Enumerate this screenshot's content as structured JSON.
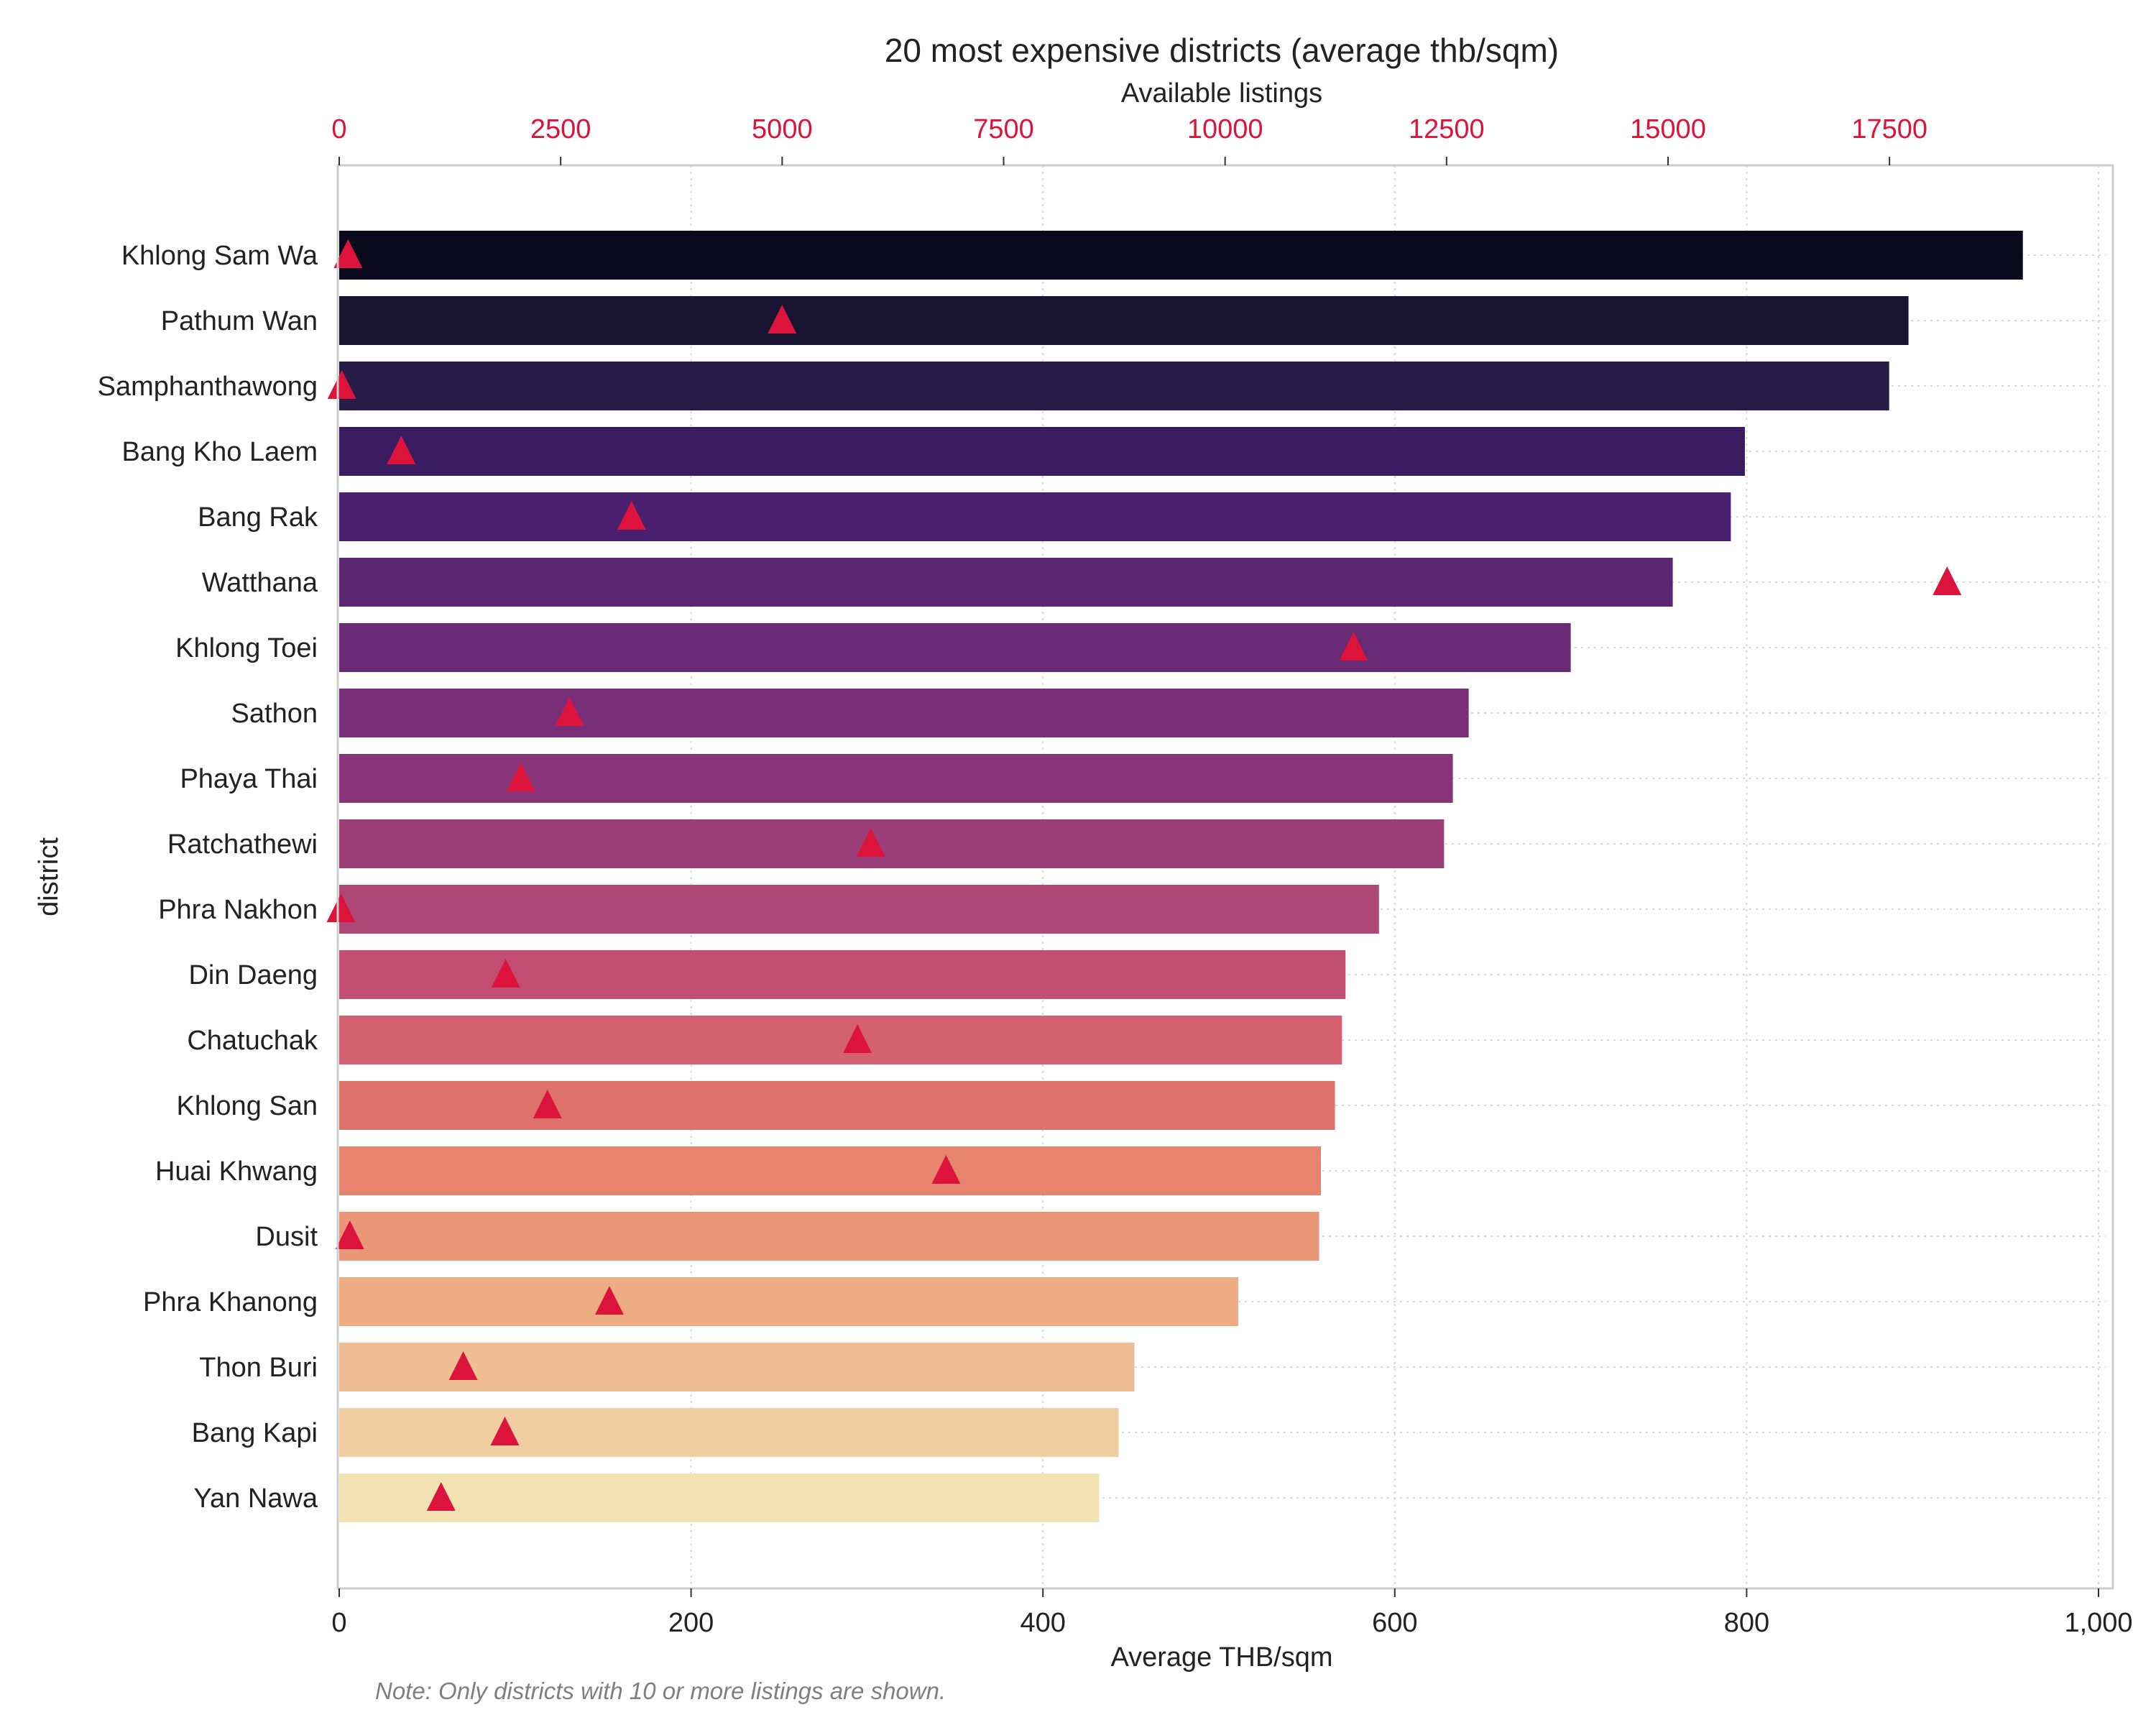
{
  "chart_data": {
    "type": "bar",
    "orientation": "horizontal",
    "title": "20 most expensive districts (average thb/sqm)",
    "xlabel": "Average THB/sqm",
    "ylabel": "district",
    "x2label": "Available listings",
    "note": "Note: Only districts with 10 or more listings are shown.",
    "xlim": [
      0,
      1000
    ],
    "x2lim": [
      0,
      19900
    ],
    "xticks": [
      0,
      200,
      400,
      600,
      800,
      1000
    ],
    "xtick_labels": [
      "0",
      "200",
      "400",
      "600",
      "800",
      "1,000"
    ],
    "x2ticks": [
      0,
      2500,
      5000,
      7500,
      10000,
      12500,
      15000,
      17500
    ],
    "x2tick_labels": [
      "0",
      "2500",
      "5000",
      "7500",
      "10000",
      "12500",
      "15000",
      "17500"
    ],
    "grid": true,
    "accent_color": "#dc143c",
    "categories": [
      "Khlong Sam Wa",
      "Pathum Wan",
      "Samphanthawong",
      "Bang Kho Laem",
      "Bang Rak",
      "Watthana",
      "Khlong Toei",
      "Sathon",
      "Phaya Thai",
      "Ratchathewi",
      "Phra Nakhon",
      "Din Daeng",
      "Chatuchak",
      "Khlong San",
      "Huai Khwang",
      "Dusit",
      "Phra Khanong",
      "Thon Buri",
      "Bang Kapi",
      "Yan Nawa"
    ],
    "series": [
      {
        "kind": "bar",
        "values": [
          957,
          892,
          881,
          799,
          791,
          758,
          700,
          642,
          633,
          628,
          591,
          572,
          570,
          566,
          558,
          557,
          511,
          452,
          443,
          432
        ],
        "colors": [
          "#0b0a1c",
          "#181431",
          "#271b48",
          "#3a1c60",
          "#4a1f6e",
          "#5a2572",
          "#682a74",
          "#782f77",
          "#873478",
          "#9a3d79",
          "#ae4677",
          "#c24f73",
          "#d4616f",
          "#de716a",
          "#e6846e",
          "#ea9778",
          "#eeac83",
          "#efbe93",
          "#f1cda2",
          "#f3e2b4"
        ]
      },
      {
        "kind": "marker",
        "marker": "triangle",
        "values": [
          100,
          5000,
          30,
          700,
          3300,
          18150,
          11450,
          2600,
          2050,
          6000,
          20,
          1880,
          5850,
          2350,
          6850,
          120,
          3050,
          1400,
          1870,
          1150
        ]
      }
    ]
  }
}
